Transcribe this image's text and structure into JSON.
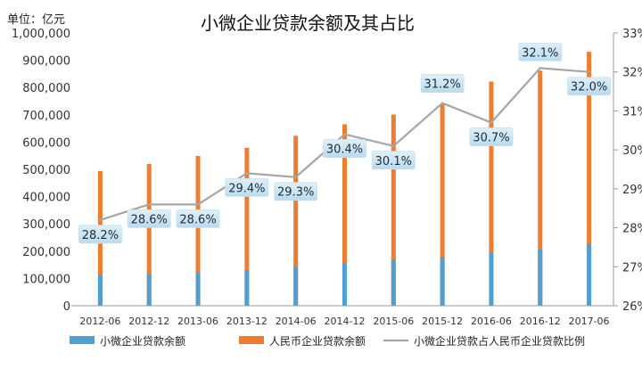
{
  "chart_data": {
    "type": "bar",
    "title": "小微企业贷款余额及其占比",
    "unit_label": "单位：亿元",
    "categories": [
      "2012-06",
      "2012-12",
      "2013-06",
      "2013-12",
      "2014-06",
      "2014-12",
      "2015-06",
      "2015-12",
      "2016-06",
      "2016-12",
      "2017-06"
    ],
    "y_left": {
      "ylim": [
        0,
        1000000
      ],
      "ticks": [
        "0",
        "100,000",
        "200,000",
        "300,000",
        "400,000",
        "500,000",
        "600,000",
        "700,000",
        "800,000",
        "900,000",
        "1,000,000"
      ]
    },
    "y_right": {
      "ylim": [
        26,
        33
      ],
      "ticks": [
        "26%",
        "27%",
        "28%",
        "29%",
        "30%",
        "31%",
        "32%",
        "33%"
      ]
    },
    "series": [
      {
        "name": "小微企业贷款余额",
        "kind": "bar",
        "color": "#4f9fd1",
        "values": [
          112000,
          116000,
          122000,
          131000,
          142000,
          155000,
          168000,
          177000,
          193000,
          207000,
          227000
        ]
      },
      {
        "name": "人民币企业贷款余额",
        "kind": "bar",
        "color": "#ed7d31",
        "values": [
          494000,
          520000,
          549000,
          579000,
          623000,
          665000,
          701000,
          738000,
          822000,
          862000,
          931000
        ]
      },
      {
        "name": "小微企业贷款占人民币企业贷款比例",
        "kind": "line",
        "color": "#a6a6a6",
        "axis": "right",
        "values": [
          28.2,
          28.6,
          28.6,
          29.4,
          29.3,
          30.4,
          30.1,
          31.2,
          30.7,
          32.1,
          32.0
        ],
        "labels": [
          "28.2%",
          "28.6%",
          "28.6%",
          "29.4%",
          "29.3%",
          "30.4%",
          "30.1%",
          "31.2%",
          "30.7%",
          "32.1%",
          "32.0%"
        ]
      }
    ],
    "legend_position": "bottom",
    "grid": false
  }
}
